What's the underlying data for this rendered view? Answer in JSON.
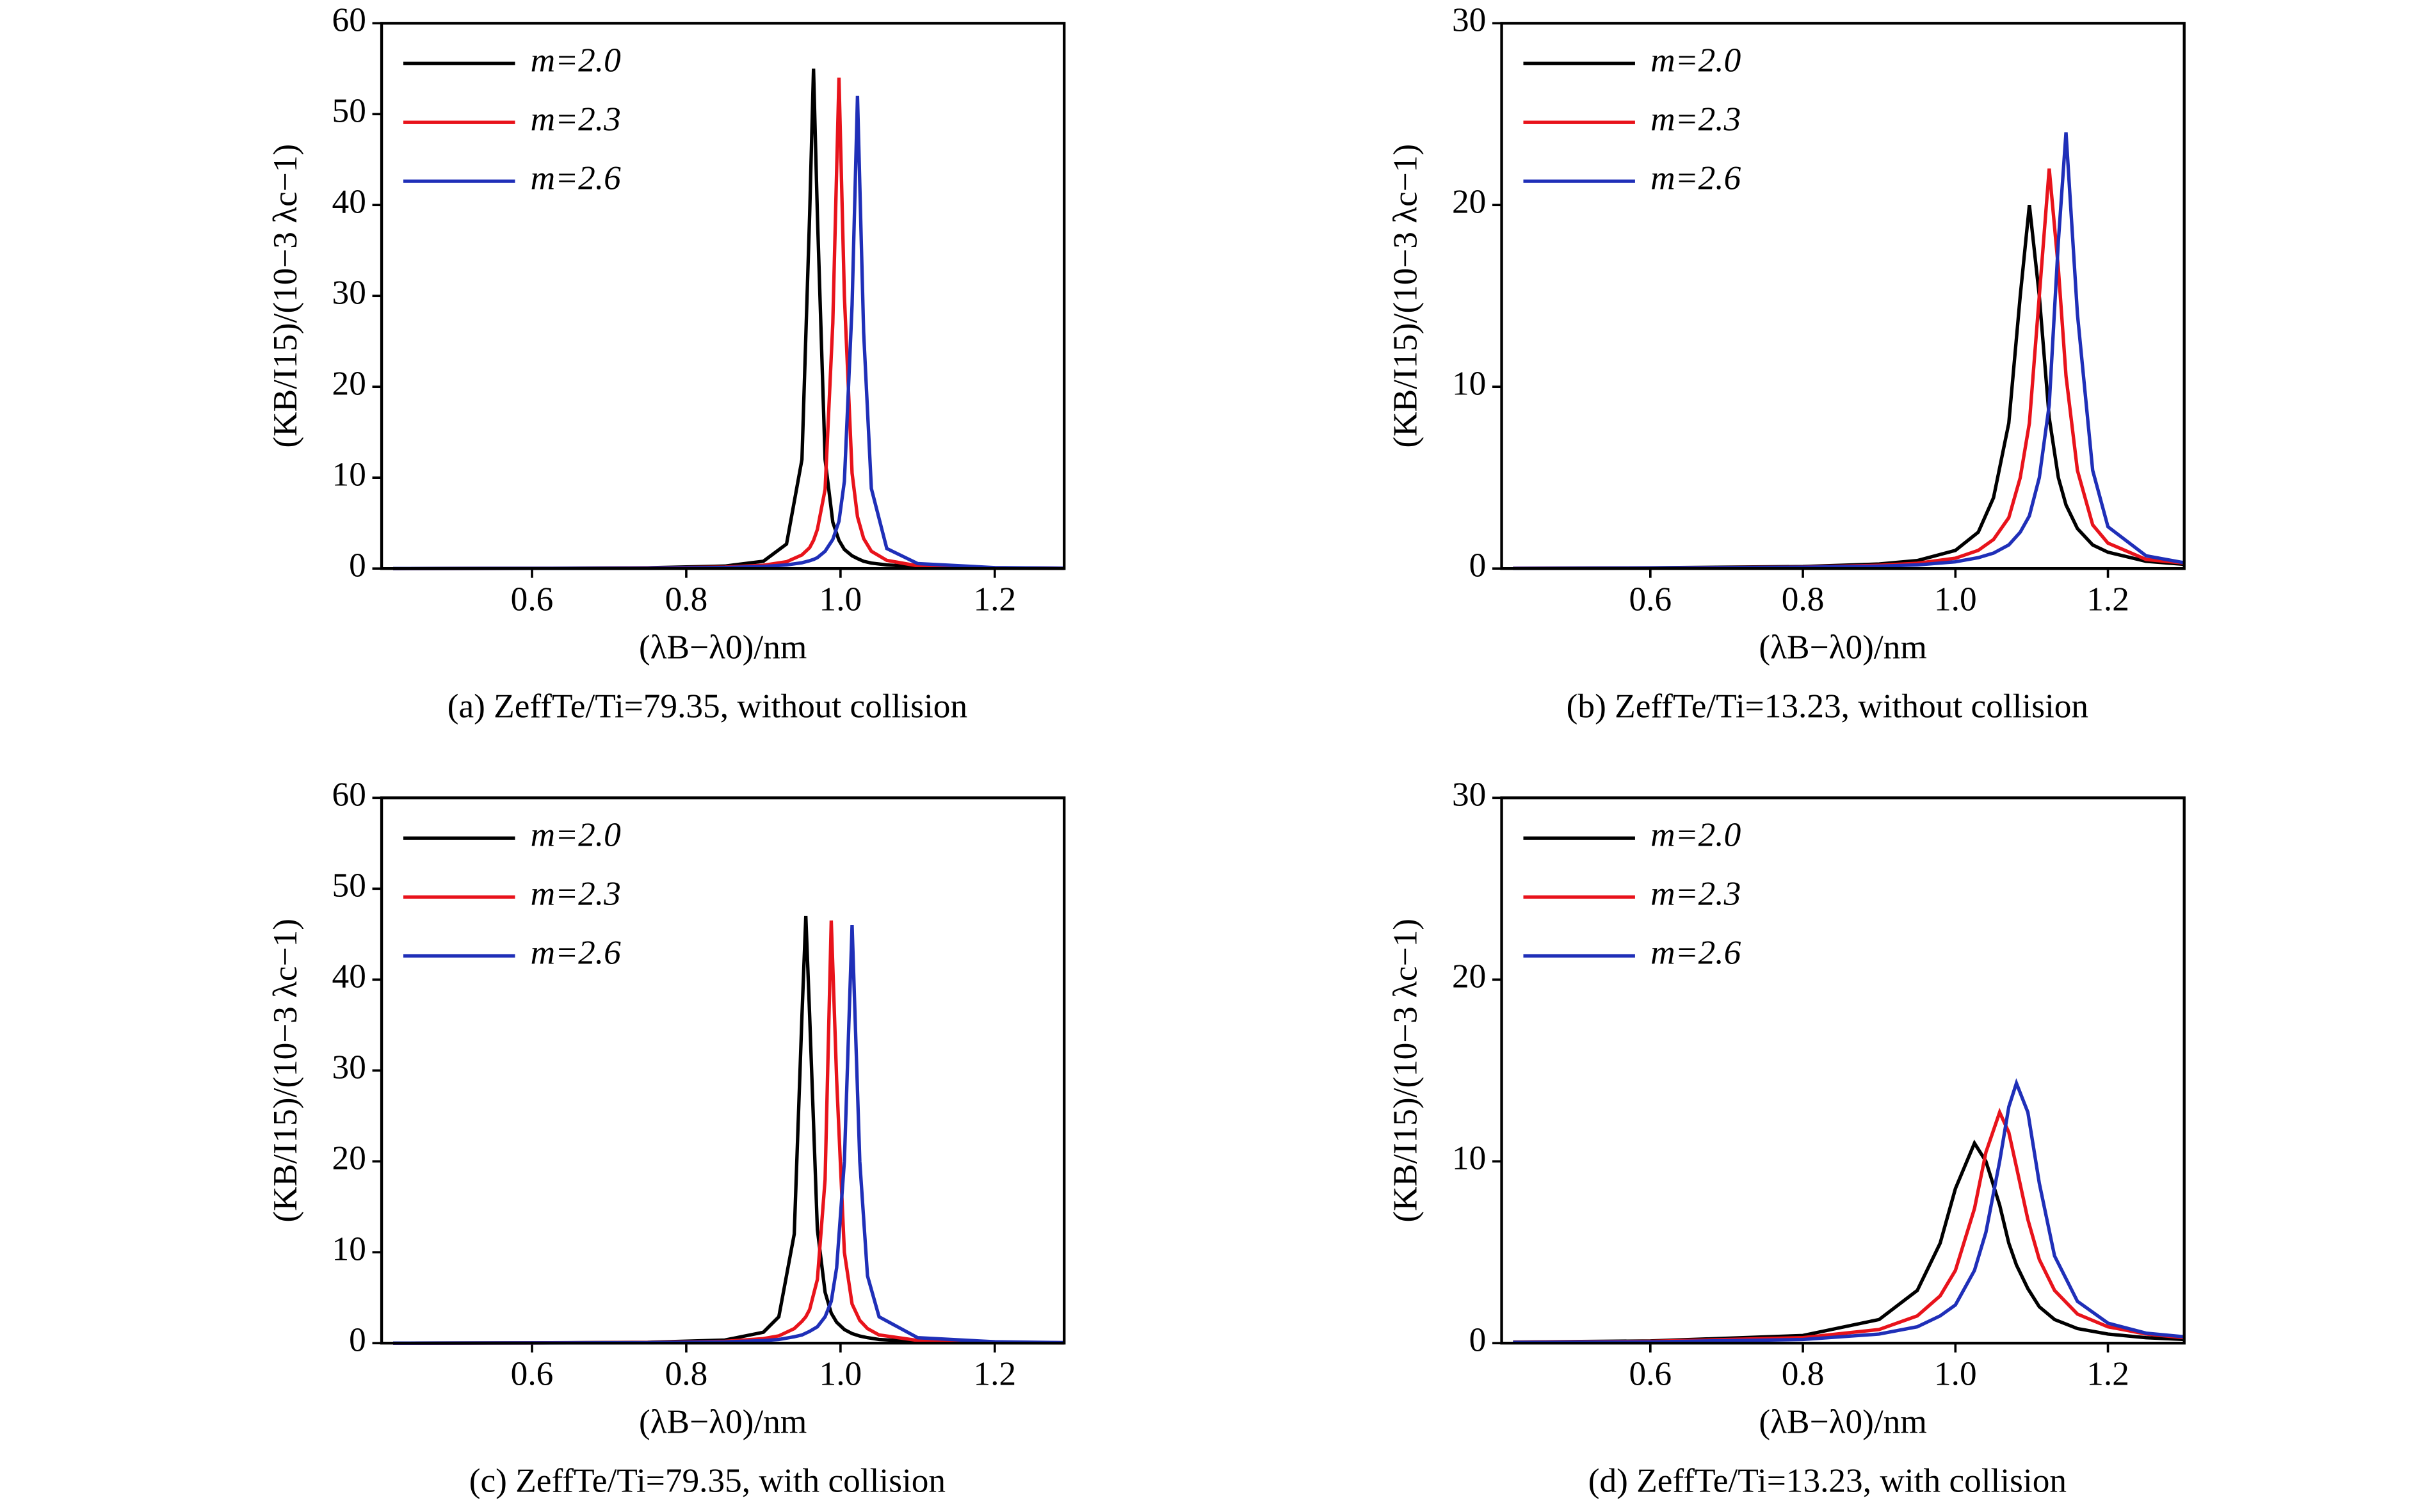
{
  "chart_data": [
    {
      "type": "line",
      "caption": "(a) ZeffTe/Ti=79.35, without collision",
      "xlabel": "(λB−λ0)/nm",
      "ylabel": "(KB/I15)/(10−3 λc−1)",
      "xlim": [
        0.405,
        1.29
      ],
      "ylim": [
        0,
        60
      ],
      "xticks": [
        0.6,
        0.8,
        {
          "value": 1,
          "label": "1.0"
        },
        1.2
      ],
      "yticks": [
        0,
        10,
        20,
        30,
        40,
        50,
        60
      ],
      "legend": "upper left",
      "x": [
        0.42,
        0.6,
        0.75,
        0.85,
        0.9,
        0.93,
        0.95,
        0.96,
        0.965,
        0.97,
        0.98,
        0.99,
        0.998,
        1.005,
        1.015,
        1.022,
        1.03,
        1.04,
        1.06,
        1.1,
        1.2,
        1.29
      ],
      "series": [
        {
          "name": "m=2.0",
          "color": "#000000",
          "values": [
            0,
            0.03,
            0.08,
            0.27,
            0.8,
            2.7,
            12,
            39,
            55,
            39,
            12,
            5.1,
            3.1,
            2.1,
            1.4,
            1.1,
            0.8,
            0.6,
            0.4,
            0.2,
            0.06,
            0.03
          ]
        },
        {
          "name": "m=2.3",
          "color": "#e8131b",
          "values": [
            0,
            0.02,
            0.06,
            0.16,
            0.36,
            0.75,
            1.5,
            2.3,
            3.1,
            4.3,
            8.7,
            27,
            54,
            30,
            10.5,
            5.7,
            3.3,
            1.9,
            0.9,
            0.3,
            0.08,
            0.04
          ]
        },
        {
          "name": "m=2.6",
          "color": "#1f2fb8",
          "values": [
            0,
            0.02,
            0.04,
            0.11,
            0.23,
            0.4,
            0.64,
            0.86,
            1,
            1.2,
            1.9,
            3.2,
            5.2,
            9.6,
            29,
            52,
            26,
            8.8,
            2.2,
            0.55,
            0.1,
            0.04
          ]
        }
      ]
    },
    {
      "type": "line",
      "caption": "(b) ZeffTe/Ti=13.23, without collision",
      "xlabel": "(λB−λ0)/nm",
      "ylabel": "(KB/I15)/(10−3 λc−1)",
      "xlim": [
        0.405,
        1.3
      ],
      "ylim": [
        0,
        30
      ],
      "xticks": [
        0.6,
        0.8,
        {
          "value": 1,
          "label": "1.0"
        },
        1.2
      ],
      "yticks": [
        0,
        10,
        20,
        30
      ],
      "legend": "upper left",
      "x": [
        0.42,
        0.6,
        0.8,
        0.9,
        0.95,
        1.0,
        1.03,
        1.05,
        1.07,
        1.085,
        1.097,
        1.11,
        1.123,
        1.135,
        1.145,
        1.16,
        1.18,
        1.2,
        1.25,
        1.3
      ],
      "series": [
        {
          "name": "m=2.0",
          "color": "#000000",
          "values": [
            0.02,
            0.04,
            0.11,
            0.25,
            0.44,
            1,
            2,
            3.9,
            8,
            15,
            20,
            15,
            8.3,
            5,
            3.5,
            2.2,
            1.3,
            0.9,
            0.4,
            0.23
          ]
        },
        {
          "name": "m=2.3",
          "color": "#e8131b",
          "values": [
            0.02,
            0.03,
            0.08,
            0.18,
            0.29,
            0.57,
            1,
            1.6,
            2.8,
            5,
            8,
            15,
            22,
            16.5,
            10.6,
            5.4,
            2.4,
            1.4,
            0.5,
            0.3
          ]
        },
        {
          "name": "m=2.6",
          "color": "#1f2fb8",
          "values": [
            0.01,
            0.03,
            0.07,
            0.13,
            0.2,
            0.37,
            0.6,
            0.85,
            1.3,
            2,
            2.9,
            5,
            9,
            18,
            24,
            14,
            5.4,
            2.3,
            0.7,
            0.32
          ]
        }
      ]
    },
    {
      "type": "line",
      "caption": "(c) ZeffTe/Ti=79.35, with collision",
      "xlabel": "(λB−λ0)/nm",
      "ylabel": "(KB/I15)/(10−3 λc−1)",
      "xlim": [
        0.405,
        1.29
      ],
      "ylim": [
        0,
        60
      ],
      "xticks": [
        0.6,
        0.8,
        {
          "value": 1,
          "label": "1.0"
        },
        1.2
      ],
      "yticks": [
        0,
        10,
        20,
        30,
        40,
        50,
        60
      ],
      "legend": "upper left",
      "x": [
        0.42,
        0.6,
        0.75,
        0.85,
        0.9,
        0.92,
        0.94,
        0.95,
        0.955,
        0.96,
        0.97,
        0.98,
        0.988,
        0.995,
        1.005,
        1.015,
        1.025,
        1.035,
        1.05,
        1.1,
        1.2,
        1.29
      ],
      "series": [
        {
          "name": "m=2.0",
          "color": "#000000",
          "values": [
            0,
            0.03,
            0.09,
            0.34,
            1.2,
            2.9,
            12,
            36,
            47,
            36,
            12.5,
            5.6,
            3.3,
            2.3,
            1.5,
            1.05,
            0.78,
            0.6,
            0.4,
            0.18,
            0.06,
            0.03
          ]
        },
        {
          "name": "m=2.3",
          "color": "#e8131b",
          "values": [
            0,
            0.02,
            0.07,
            0.2,
            0.5,
            0.8,
            1.6,
            2.4,
            2.9,
            3.7,
            7,
            18,
            46.5,
            29,
            10,
            4.3,
            2.5,
            1.6,
            0.9,
            0.3,
            0.1,
            0.05
          ]
        },
        {
          "name": "m=2.6",
          "color": "#1f2fb8",
          "values": [
            0,
            0.02,
            0.05,
            0.14,
            0.28,
            0.4,
            0.7,
            0.9,
            1.1,
            1.3,
            1.8,
            2.9,
            4.6,
            8.3,
            20,
            46,
            20,
            7.4,
            2.9,
            0.6,
            0.15,
            0.06
          ]
        }
      ]
    },
    {
      "type": "line",
      "caption": "(d) ZeffTe/Ti=13.23, with collision",
      "xlabel": "(λB−λ0)/nm",
      "ylabel": "(KB/I15)/(10−3 λc−1)",
      "xlim": [
        0.405,
        1.3
      ],
      "ylim": [
        0,
        30
      ],
      "xticks": [
        0.6,
        0.8,
        {
          "value": 1,
          "label": "1.0"
        },
        1.2
      ],
      "yticks": [
        0,
        10,
        20,
        30
      ],
      "legend": "upper left",
      "x": [
        0.42,
        0.6,
        0.8,
        0.9,
        0.95,
        0.98,
        1.0,
        1.025,
        1.04,
        1.058,
        1.07,
        1.08,
        1.095,
        1.11,
        1.13,
        1.16,
        1.2,
        1.25,
        1.3
      ],
      "series": [
        {
          "name": "m=2.0",
          "color": "#000000",
          "values": [
            0.06,
            0.12,
            0.42,
            1.3,
            2.9,
            5.5,
            8.5,
            11,
            10,
            7.6,
            5.5,
            4.3,
            3,
            2,
            1.3,
            0.8,
            0.5,
            0.3,
            0.2
          ]
        },
        {
          "name": "m=2.3",
          "color": "#e8131b",
          "values": [
            0.05,
            0.1,
            0.3,
            0.75,
            1.5,
            2.6,
            4,
            7.4,
            10.5,
            12.7,
            11.6,
            9.7,
            6.8,
            4.6,
            2.9,
            1.6,
            0.9,
            0.5,
            0.3
          ]
        },
        {
          "name": "m=2.6",
          "color": "#1f2fb8",
          "values": [
            0.04,
            0.07,
            0.2,
            0.5,
            0.9,
            1.5,
            2.1,
            4,
            6.1,
            10,
            13,
            14.3,
            12.7,
            8.8,
            4.8,
            2.3,
            1.1,
            0.55,
            0.35
          ]
        }
      ]
    }
  ]
}
